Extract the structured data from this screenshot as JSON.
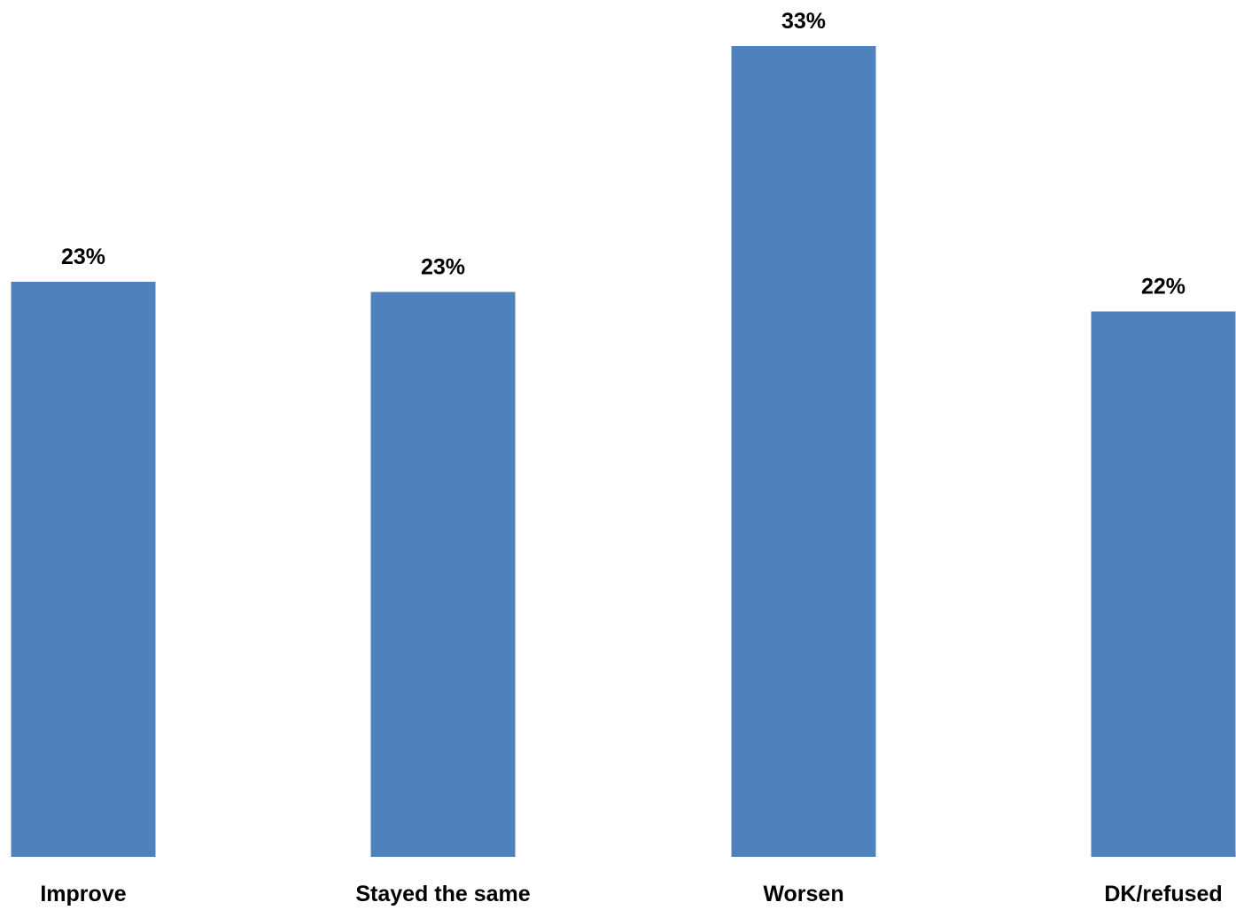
{
  "chart_data": {
    "type": "bar",
    "categories": [
      "Improve",
      "Stayed the same",
      "Worsen",
      "DK/refused"
    ],
    "values": [
      23.4,
      23.0,
      33.0,
      22.2
    ],
    "data_labels": [
      "23%",
      "23%",
      "33%",
      "22%"
    ],
    "title": "",
    "xlabel": "",
    "ylabel": "",
    "ylim": [
      0,
      33.0
    ],
    "grid": false,
    "legend": "none",
    "bar_color": "#4f81bd"
  }
}
